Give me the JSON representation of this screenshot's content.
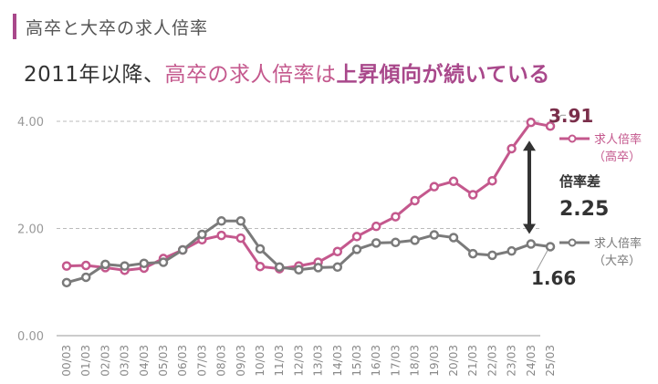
{
  "header": {
    "section_title": "高卒と大卒の求人倍率",
    "headline_part1": "2011年以降、",
    "headline_part2": "高卒の求人倍率は",
    "headline_part3": "上昇傾向が続いている"
  },
  "colors": {
    "accent": "#a9488b",
    "series_koso": "#c4588d",
    "series_daiso": "#7a7a7a",
    "gap_arrow": "#333333",
    "grid": "#bbbbbb"
  },
  "chart_data": {
    "type": "line",
    "title": "",
    "xlabel": "",
    "ylabel": "",
    "ylim": [
      0,
      4.0
    ],
    "yticks": [
      "0.00",
      "2.00",
      "4.00"
    ],
    "grid": "horizontal dashed at 2.00 and 4.00",
    "categories": [
      "00/03",
      "01/03",
      "02/03",
      "03/03",
      "04/03",
      "05/03",
      "06/03",
      "07/03",
      "08/03",
      "09/03",
      "10/03",
      "11/03",
      "12/03",
      "13/03",
      "14/03",
      "15/03",
      "16/03",
      "17/03",
      "18/03",
      "19/03",
      "20/03",
      "21/03",
      "22/03",
      "23/03",
      "24/03",
      "25/03"
    ],
    "series": [
      {
        "name": "求人倍率（高卒）",
        "legend_line1": "求人倍率",
        "legend_line2": "（高卒）",
        "values": [
          1.3,
          1.31,
          1.27,
          1.22,
          1.26,
          1.44,
          1.6,
          1.79,
          1.87,
          1.82,
          1.29,
          1.25,
          1.3,
          1.37,
          1.57,
          1.85,
          2.04,
          2.22,
          2.52,
          2.78,
          2.88,
          2.63,
          2.89,
          3.49,
          3.98,
          3.91
        ]
      },
      {
        "name": "求人倍率（大卒）",
        "legend_line1": "求人倍率",
        "legend_line2": "（大卒）",
        "values": [
          0.99,
          1.09,
          1.33,
          1.3,
          1.35,
          1.37,
          1.6,
          1.89,
          2.14,
          2.14,
          1.62,
          1.28,
          1.23,
          1.27,
          1.28,
          1.61,
          1.73,
          1.74,
          1.78,
          1.88,
          1.83,
          1.53,
          1.5,
          1.58,
          1.71,
          1.66
        ]
      }
    ],
    "annotations": {
      "koso_last": "3.91",
      "daiso_last": "1.66",
      "gap_label": "倍率差",
      "gap_value": "2.25"
    }
  }
}
